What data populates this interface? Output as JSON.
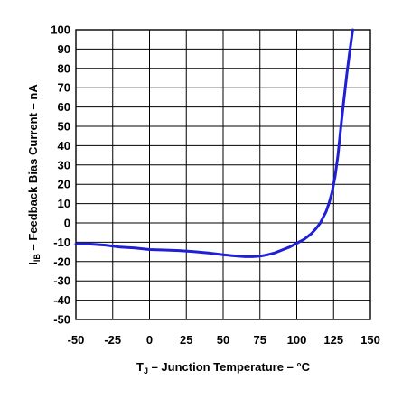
{
  "chart_data": {
    "type": "line",
    "xlabel": {
      "main": "T",
      "sub": "J",
      "rest": " – Junction Temperature – °C"
    },
    "ylabel": {
      "main": "I",
      "sub": "IB",
      "rest": " – Feedback Bias Current – nA"
    },
    "xlim": [
      -50,
      150
    ],
    "ylim": [
      -50,
      100
    ],
    "xticks": [
      "-50",
      "-25",
      "0",
      "25",
      "50",
      "75",
      "100",
      "125",
      "150"
    ],
    "yticks": [
      "100",
      "90",
      "80",
      "70",
      "60",
      "50",
      "40",
      "30",
      "20",
      "10",
      "0",
      "-10",
      "-20",
      "-30",
      "-40",
      "-50"
    ],
    "grid": true,
    "line_color": "#1f1fd6",
    "series": [
      {
        "x": [
          -50,
          -40,
          -30,
          -20,
          -10,
          0,
          10,
          20,
          30,
          40,
          50,
          60,
          65,
          70,
          75,
          80,
          85,
          90,
          95,
          100,
          105,
          110,
          113,
          116,
          118,
          120,
          122,
          124,
          126,
          128,
          130,
          132,
          134,
          136,
          138
        ],
        "y": [
          -11,
          -11,
          -11.5,
          -12.5,
          -13,
          -13.8,
          -14,
          -14.3,
          -14.8,
          -15.5,
          -16.5,
          -17.2,
          -17.5,
          -17.5,
          -17.2,
          -16.5,
          -15.5,
          -14,
          -12.5,
          -10.5,
          -8.5,
          -5.5,
          -3,
          0,
          3,
          6,
          10.5,
          16,
          24,
          35,
          50,
          64,
          77,
          89,
          100
        ]
      }
    ]
  }
}
